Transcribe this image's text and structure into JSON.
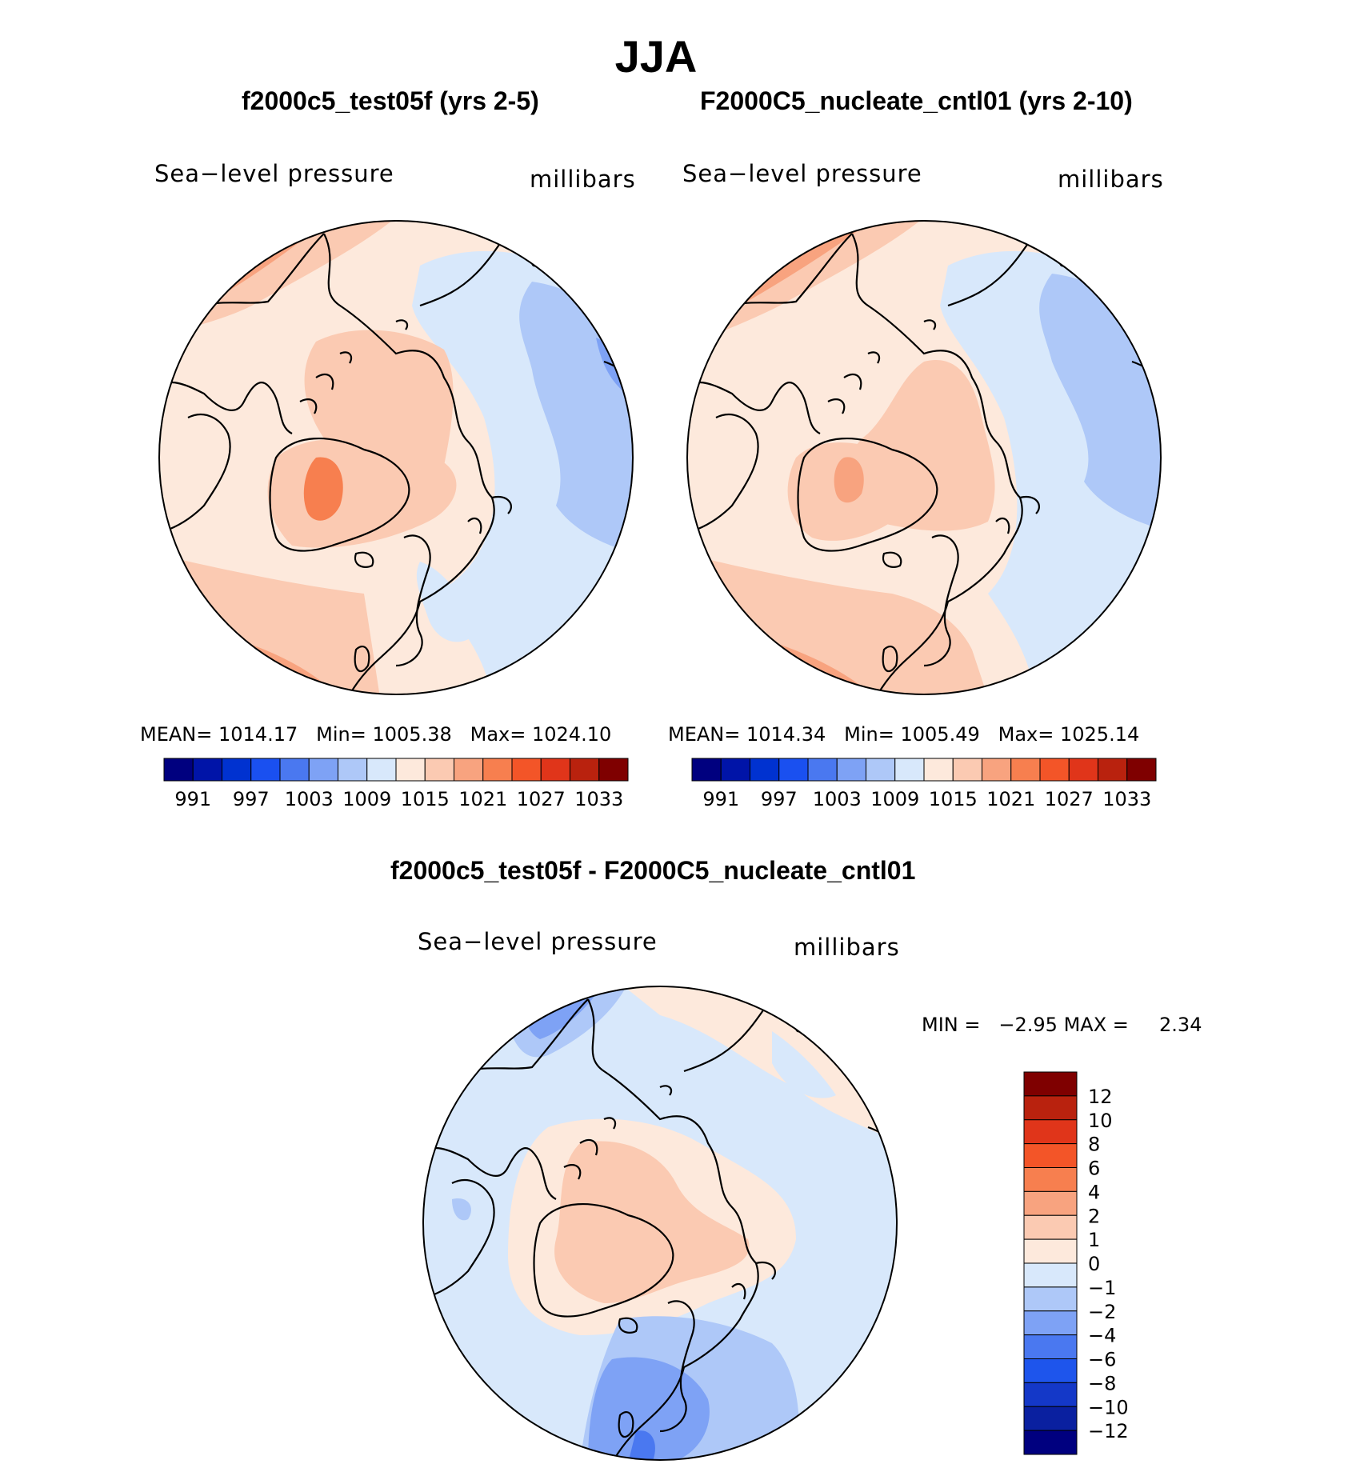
{
  "title": "JJA",
  "panels": [
    {
      "id": "test",
      "title": "f2000c5_test05f (yrs 2-5)",
      "variable": "Sea−level pressure",
      "units": "millibars",
      "stats": {
        "mean_label": "MEAN=",
        "mean": "1014.17",
        "min_label": "Min=",
        "min": "1005.38",
        "max_label": "Max=",
        "max": "1024.10"
      }
    },
    {
      "id": "cntl",
      "title": "F2000C5_nucleate_cntl01 (yrs 2-10)",
      "variable": "Sea−level pressure",
      "units": "millibars",
      "stats": {
        "mean_label": "MEAN=",
        "mean": "1014.34",
        "min_label": "Min=",
        "min": "1005.49",
        "max_label": "Max=",
        "max": "1025.14"
      }
    },
    {
      "id": "diff",
      "title": "f2000c5_test05f - F2000C5_nucleate_cntl01",
      "variable": "Sea−level pressure",
      "units": "millibars",
      "stats": {
        "min_label": "MIN =",
        "min": "−2.95",
        "max_label": "MAX =",
        "max": "2.34"
      }
    }
  ],
  "abs_colorbar": {
    "colors": [
      "#00007f",
      "#0014a8",
      "#0032d0",
      "#1a50f0",
      "#4a78f0",
      "#7ea2f5",
      "#aec8f8",
      "#d8e8fb",
      "#fde9dc",
      "#fbcab2",
      "#f8a37f",
      "#f77f4f",
      "#f35528",
      "#e0351a",
      "#b9220e",
      "#7f0000"
    ],
    "labels": [
      "991",
      "997",
      "1003",
      "1009",
      "1015",
      "1021",
      "1027",
      "1033"
    ]
  },
  "diff_colorbar": {
    "colors": [
      "#00007f",
      "#0a20a0",
      "#1438c8",
      "#1e55ec",
      "#4a78f0",
      "#7ea2f5",
      "#aec8f8",
      "#d8e8fb",
      "#fde9dc",
      "#fbcab2",
      "#f8a37f",
      "#f77f4f",
      "#f35528",
      "#e0351a",
      "#b9220e",
      "#7f0000"
    ],
    "labels": [
      "12",
      "10",
      "8",
      "6",
      "4",
      "2",
      "1",
      "0",
      "−1",
      "−2",
      "−4",
      "−6",
      "−8",
      "−10",
      "−12"
    ]
  },
  "fills": {
    "blue1": "#d8e8fb",
    "blue2": "#aec8f8",
    "blue3": "#7ea2f5",
    "blue4": "#4a78f0",
    "peach1": "#fde9dc",
    "peach2": "#fbcab2",
    "peach3": "#f8a37f",
    "peach4": "#f77f4f",
    "peach5": "#f35528"
  }
}
